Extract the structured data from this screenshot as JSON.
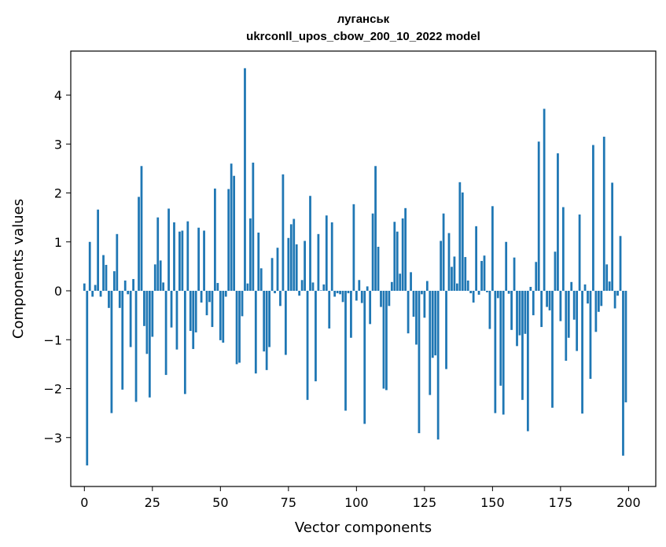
{
  "chart_data": {
    "type": "bar",
    "title": "луганськ",
    "subtitle": "ukrconll_upos_cbow_200_10_2022 model",
    "xlabel": "Vector components",
    "ylabel": "Components values",
    "xlim": [
      -5,
      210
    ],
    "ylim": [
      -4.0,
      4.9
    ],
    "xticks": [
      0,
      25,
      50,
      75,
      100,
      125,
      150,
      175,
      200
    ],
    "yticks": [
      -3,
      -2,
      -1,
      0,
      1,
      2,
      3,
      4
    ],
    "ytick_labels": [
      "−3",
      "−2",
      "−1",
      "0",
      "1",
      "2",
      "3",
      "4"
    ],
    "bar_color": "#1f77b4",
    "grid": false,
    "legend": "none",
    "series": [
      {
        "values": [
          0.15,
          -3.57,
          1.0,
          -0.12,
          0.12,
          1.66,
          -0.12,
          0.73,
          0.53,
          -0.35,
          -2.5,
          0.4,
          1.16,
          -0.35,
          -2.02,
          0.21,
          -0.07,
          -1.15,
          0.24,
          -2.27,
          1.92,
          2.55,
          -0.72,
          -1.29,
          -2.18,
          -0.94,
          0.54,
          1.5,
          0.62,
          0.17,
          -1.72,
          1.68,
          -0.75,
          1.4,
          -1.2,
          1.21,
          1.23,
          -2.11,
          1.42,
          -0.82,
          -1.19,
          -0.85,
          1.29,
          -0.24,
          1.23,
          -0.5,
          -0.23,
          -0.74,
          2.09,
          0.16,
          -1.01,
          -1.06,
          -0.12,
          2.08,
          2.6,
          2.35,
          -1.5,
          -1.47,
          -0.52,
          4.55,
          0.15,
          1.48,
          2.62,
          -1.69,
          1.19,
          0.46,
          -1.24,
          -1.62,
          -1.15,
          0.67,
          -0.05,
          0.88,
          -0.31,
          2.38,
          -1.31,
          1.08,
          1.36,
          1.47,
          0.95,
          -0.1,
          0.22,
          1.02,
          -2.23,
          1.94,
          0.17,
          -1.85,
          1.16,
          0.01,
          0.13,
          1.54,
          -0.77,
          1.4,
          -0.12,
          -0.05,
          -0.07,
          -0.23,
          -2.45,
          -0.05,
          -0.96,
          1.77,
          -0.2,
          0.22,
          -0.25,
          -2.72,
          0.09,
          -0.68,
          1.58,
          2.55,
          0.9,
          -0.33,
          -2.0,
          -2.03,
          -0.31,
          0.18,
          1.41,
          1.21,
          0.35,
          1.48,
          1.69,
          -0.87,
          0.38,
          -0.53,
          -1.1,
          -2.91,
          -0.07,
          -0.55,
          0.2,
          -2.13,
          -1.37,
          -1.32,
          -3.04,
          1.02,
          1.58,
          -1.6,
          1.18,
          0.49,
          0.7,
          0.15,
          2.22,
          2.01,
          0.69,
          0.21,
          -0.05,
          -0.24,
          1.32,
          -0.08,
          0.61,
          0.72,
          -0.03,
          -0.78,
          1.73,
          -2.5,
          -0.15,
          -1.94,
          -2.53,
          1.0,
          -0.06,
          -0.8,
          0.68,
          -1.13,
          -0.91,
          -2.23,
          -0.88,
          -2.87,
          0.08,
          -0.5,
          0.59,
          3.05,
          -0.74,
          3.72,
          -0.33,
          -0.4,
          -2.39,
          0.8,
          2.81,
          -0.62,
          1.71,
          -1.43,
          -0.96,
          0.18,
          -0.59,
          -1.23,
          1.56,
          -2.51,
          0.13,
          -0.26,
          -1.8,
          2.98,
          -0.84,
          -0.43,
          -0.31,
          3.15,
          0.54,
          0.19,
          2.21,
          -0.36,
          -0.1,
          1.12,
          -3.37,
          -2.28
        ]
      }
    ]
  }
}
